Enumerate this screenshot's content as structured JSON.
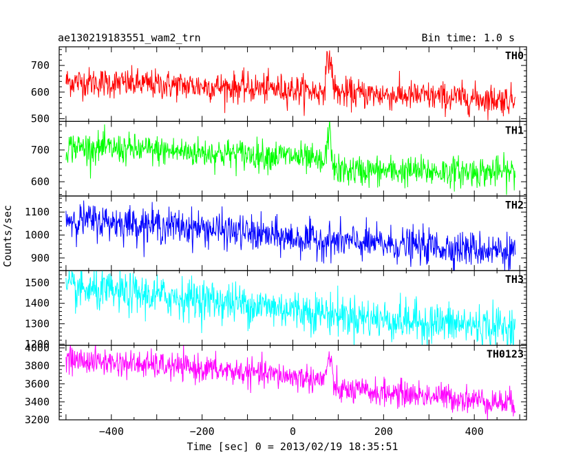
{
  "header": {
    "title": "ae130219183551_wam2_trn",
    "bin_time": "Bin time: 1.0 s"
  },
  "chart_data": {
    "type": "line",
    "xlabel": "Time [sec] 0 = 2013/02/19 18:35:51",
    "ylabel": "Counts/sec",
    "xlim": [
      -515,
      515
    ],
    "x_ticks": [
      -400,
      -200,
      0,
      200,
      400
    ],
    "x_tick_labels": [
      "−400",
      "−200",
      "0",
      "200",
      "400"
    ],
    "x_range_data": [
      -500,
      490
    ],
    "bin_time_s": 1.0,
    "panels": [
      {
        "name": "TH0",
        "color": "#ff0000",
        "ylim": [
          490,
          770
        ],
        "yticks": [
          500,
          600,
          700
        ],
        "trend": [
          [
            -500,
            640
          ],
          [
            0,
            610
          ],
          [
            60,
            600
          ],
          [
            490,
            570
          ]
        ],
        "noise": 28,
        "flare": {
          "t": 80,
          "peak": 775,
          "width": 6
        }
      },
      {
        "name": "TH1",
        "color": "#00ff00",
        "ylim": [
          555,
          790
        ],
        "yticks": [
          600,
          700
        ],
        "trend": [
          [
            -500,
            710
          ],
          [
            0,
            680
          ],
          [
            60,
            660
          ],
          [
            90,
            635
          ],
          [
            490,
            630
          ]
        ],
        "noise": 24,
        "flare": {
          "t": 80,
          "peak": 790,
          "width": 5
        }
      },
      {
        "name": "TH2",
        "color": "#0000ff",
        "ylim": [
          845,
          1170
        ],
        "yticks": [
          900,
          1000,
          1100
        ],
        "trend": [
          [
            -500,
            1070
          ],
          [
            -200,
            1030
          ],
          [
            0,
            985
          ],
          [
            200,
            960
          ],
          [
            490,
            930
          ]
        ],
        "noise": 38,
        "flare": null
      },
      {
        "name": "TH3",
        "color": "#00ffff",
        "ylim": [
          1195,
          1560
        ],
        "yticks": [
          1200,
          1300,
          1400,
          1500
        ],
        "trend": [
          [
            -500,
            1470
          ],
          [
            -200,
            1420
          ],
          [
            0,
            1370
          ],
          [
            200,
            1320
          ],
          [
            490,
            1280
          ]
        ],
        "noise": 50,
        "flare": null
      },
      {
        "name": "TH0123",
        "color": "#ff00ff",
        "ylim": [
          3200,
          4030
        ],
        "yticks": [
          3200,
          3400,
          3600,
          3800,
          4000
        ],
        "trend": [
          [
            -500,
            3870
          ],
          [
            -200,
            3770
          ],
          [
            0,
            3680
          ],
          [
            60,
            3650
          ],
          [
            100,
            3530
          ],
          [
            300,
            3470
          ],
          [
            490,
            3380
          ]
        ],
        "noise": 75,
        "flare": {
          "t": 80,
          "peak": 4000,
          "width": 5
        }
      }
    ]
  }
}
